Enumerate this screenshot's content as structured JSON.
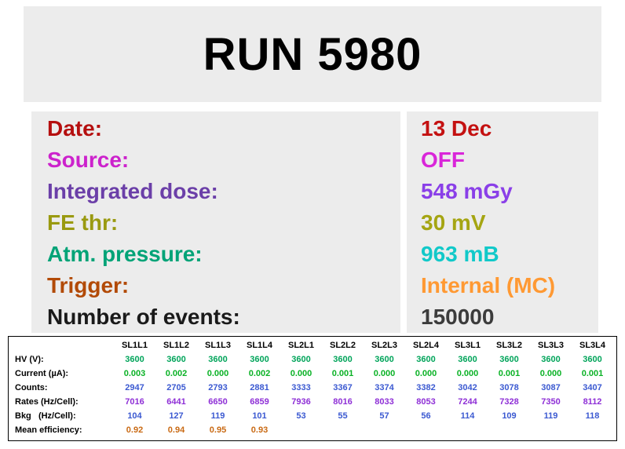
{
  "title": "RUN 5980",
  "info": {
    "rows": [
      {
        "key": "date",
        "label": "Date:",
        "value": "13 Dec",
        "labelColor": "#b50f0f",
        "valueColor": "#c41111"
      },
      {
        "key": "source",
        "label": "Source:",
        "value": "OFF",
        "labelColor": "#cc22cc",
        "valueColor": "#d926d9"
      },
      {
        "key": "integrated-dose",
        "label": "Integrated dose:",
        "value": "548 mGy",
        "labelColor": "#6b3fa8",
        "valueColor": "#8a3fe8"
      },
      {
        "key": "fe-thr",
        "label": "FE thr:",
        "value": "30 mV",
        "labelColor": "#9a9a10",
        "valueColor": "#a5a512"
      },
      {
        "key": "atm-pressure",
        "label": "Atm. pressure:",
        "value": "963 mB",
        "labelColor": "#00a377",
        "valueColor": "#11c9c9"
      },
      {
        "key": "trigger",
        "label": "Trigger:",
        "value": "Internal (MC)",
        "labelColor": "#b24a06",
        "valueColor": "#ff9933"
      },
      {
        "key": "number-of-events",
        "label": "Number of events:",
        "value": "150000",
        "labelColor": "#1a1a1a",
        "valueColor": "#3c3c3c"
      }
    ]
  },
  "table": {
    "columns": [
      "SL1L1",
      "SL1L2",
      "SL1L3",
      "SL1L4",
      "SL2L1",
      "SL2L2",
      "SL2L3",
      "SL2L4",
      "SL3L1",
      "SL3L2",
      "SL3L3",
      "SL3L4"
    ],
    "rows": [
      {
        "key": "hv",
        "label": "HV (V):",
        "color": "#00a45a",
        "values": [
          "3600",
          "3600",
          "3600",
          "3600",
          "3600",
          "3600",
          "3600",
          "3600",
          "3600",
          "3600",
          "3600",
          "3600"
        ]
      },
      {
        "key": "current",
        "label": "Current (µA):",
        "color": "#0bb226",
        "values": [
          "0.003",
          "0.002",
          "0.000",
          "0.002",
          "0.000",
          "0.001",
          "0.000",
          "0.000",
          "0.000",
          "0.001",
          "0.000",
          "0.001"
        ]
      },
      {
        "key": "counts",
        "label": "Counts:",
        "color": "#3b59d1",
        "values": [
          "2947",
          "2705",
          "2793",
          "2881",
          "3333",
          "3367",
          "3374",
          "3382",
          "3042",
          "3078",
          "3087",
          "3407"
        ]
      },
      {
        "key": "rates",
        "label": "Rates (Hz/Cell):",
        "color": "#8e2fd6",
        "values": [
          "7016",
          "6441",
          "6650",
          "6859",
          "7936",
          "8016",
          "8033",
          "8053",
          "7244",
          "7328",
          "7350",
          "8112"
        ]
      },
      {
        "key": "bkg",
        "label": "Bkg   (Hz/Cell):",
        "color": "#3b59d1",
        "values": [
          "104",
          "127",
          "119",
          "101",
          "53",
          "55",
          "57",
          "56",
          "114",
          "109",
          "119",
          "118"
        ]
      },
      {
        "key": "mean-efficiency",
        "label": "Mean efficiency:",
        "color": "#c96a14",
        "values": [
          "0.92",
          "0.94",
          "0.95",
          "0.93",
          "",
          "",
          "",
          "",
          "",
          "",
          "",
          ""
        ]
      }
    ]
  }
}
